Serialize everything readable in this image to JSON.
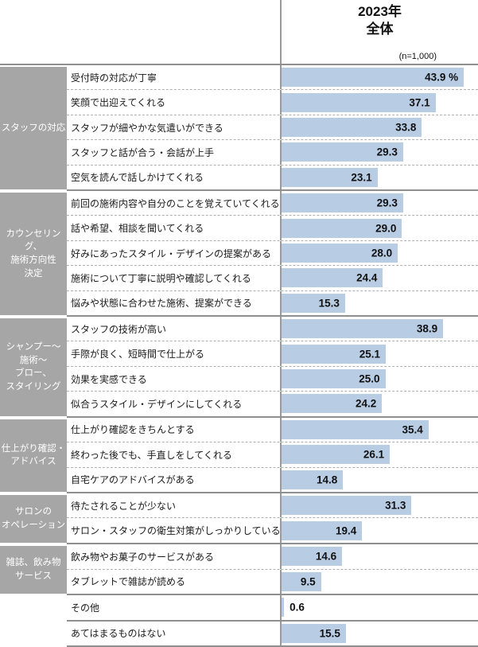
{
  "header": {
    "year_label": "2023年",
    "scope_label": "全体",
    "sample_size": "(n=1,000)"
  },
  "colors": {
    "bar_fill": "#b8cce4",
    "category_bg": "#a6a6a6",
    "category_text": "#ffffff",
    "group_border": "#8f8f8f",
    "axis_line": "#9a9a9a",
    "row_divider": "#b0b0b0"
  },
  "chart_data": {
    "type": "bar",
    "orientation": "horizontal",
    "value_unit": "%",
    "title": "2023年 全体",
    "sample_size": "(n=1,000)",
    "xlim": [
      0,
      47.5
    ],
    "grid": false,
    "legend": false,
    "groups": [
      {
        "category": "スタッフの対応",
        "category_lines": [
          "スタッフの対応"
        ],
        "items": [
          {
            "label": "受付時の対応が丁寧",
            "value": 43.9,
            "display": "43.9 %"
          },
          {
            "label": "笑顔で出迎えてくれる",
            "value": 37.1,
            "display": "37.1"
          },
          {
            "label": "スタッフが細やかな気遣いができる",
            "value": 33.8,
            "display": "33.8"
          },
          {
            "label": "スタッフと話が合う・会話が上手",
            "value": 29.3,
            "display": "29.3"
          },
          {
            "label": "空気を読んで話しかけてくれる",
            "value": 23.1,
            "display": "23.1"
          }
        ]
      },
      {
        "category": "カウンセリング、施術方向性決定",
        "category_lines": [
          "カウンセリング、",
          "施術方向性",
          "決定"
        ],
        "items": [
          {
            "label": "前回の施術内容や自分のことを覚えていてくれる",
            "value": 29.3,
            "display": "29.3"
          },
          {
            "label": "話や希望、相談を聞いてくれる",
            "value": 29.0,
            "display": "29.0"
          },
          {
            "label": "好みにあったスタイル・デザインの提案がある",
            "value": 28.0,
            "display": "28.0"
          },
          {
            "label": "施術について丁寧に説明や確認してくれる",
            "value": 24.4,
            "display": "24.4"
          },
          {
            "label": "悩みや状態に合わせた施術、提案ができる",
            "value": 15.3,
            "display": "15.3"
          }
        ]
      },
      {
        "category": "シャンプー～施術～ブロー、スタイリング",
        "category_lines": [
          "シャンプー～",
          "施術～",
          "ブロー、",
          "スタイリング"
        ],
        "items": [
          {
            "label": "スタッフの技術が高い",
            "value": 38.9,
            "display": "38.9"
          },
          {
            "label": "手際が良く、短時間で仕上がる",
            "value": 25.1,
            "display": "25.1"
          },
          {
            "label": "効果を実感できる",
            "value": 25.0,
            "display": "25.0"
          },
          {
            "label": "似合うスタイル・デザインにしてくれる",
            "value": 24.2,
            "display": "24.2"
          }
        ]
      },
      {
        "category": "仕上がり確認・アドバイス",
        "category_lines": [
          "仕上がり確認・",
          "アドバイス"
        ],
        "items": [
          {
            "label": "仕上がり確認をきちんとする",
            "value": 35.4,
            "display": "35.4"
          },
          {
            "label": "終わった後でも、手直しをしてくれる",
            "value": 26.1,
            "display": "26.1"
          },
          {
            "label": "自宅ケアのアドバイスがある",
            "value": 14.8,
            "display": "14.8"
          }
        ]
      },
      {
        "category": "サロンのオペレーション",
        "category_lines": [
          "サロンの",
          "オペレーション"
        ],
        "items": [
          {
            "label": "待たされることが少ない",
            "value": 31.3,
            "display": "31.3"
          },
          {
            "label": "サロン・スタッフの衛生対策がしっかりしている",
            "value": 19.4,
            "display": "19.4"
          }
        ]
      },
      {
        "category": "雑誌、飲み物サービス",
        "category_lines": [
          "雑誌、飲み物",
          "サービス"
        ],
        "items": [
          {
            "label": "飲み物やお菓子のサービスがある",
            "value": 14.6,
            "display": "14.6"
          },
          {
            "label": "タブレットで雑誌が読める",
            "value": 9.5,
            "display": "9.5"
          }
        ]
      },
      {
        "category": "",
        "category_lines": [],
        "items": [
          {
            "label": "その他",
            "value": 0.6,
            "display": "0.6"
          }
        ]
      },
      {
        "category": "",
        "category_lines": [],
        "items": [
          {
            "label": "あてはまるものはない",
            "value": 15.5,
            "display": "15.5"
          }
        ]
      }
    ]
  }
}
